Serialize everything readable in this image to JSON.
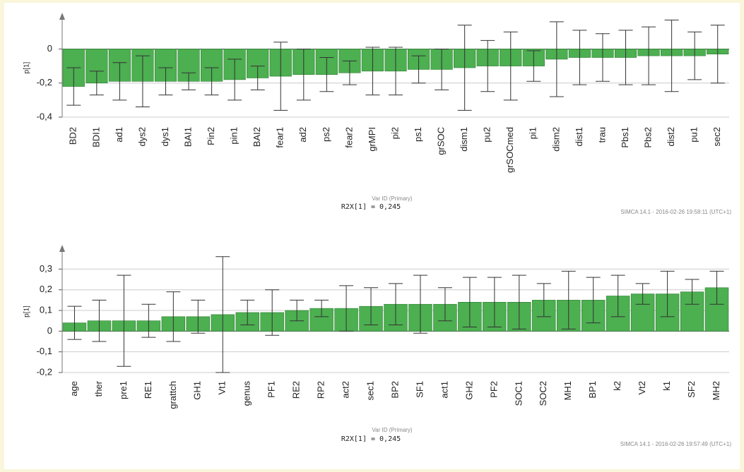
{
  "chart_data": [
    {
      "type": "bar",
      "ylabel": "p[1]",
      "xlabel": "Var ID (Primary)",
      "annotation": "R2X[1] = 0,245",
      "footer": "SIMCA 14.1 - 2016-02-26 19:58:11 (UTC+1)",
      "categories": [
        "BD2",
        "BDI1",
        "ad1",
        "dys2",
        "dys1",
        "BAI1",
        "Pin2",
        "pin1",
        "BAI2",
        "fear1",
        "ad2",
        "ps2",
        "fear2",
        "grMPI",
        "pi2",
        "ps1",
        "grSOC",
        "dism1",
        "pu2",
        "grSOCmed",
        "pi1",
        "dism2",
        "dist1",
        "trau",
        "Pbs1",
        "Pbs2",
        "dist2",
        "pu1",
        "sec2"
      ],
      "values": [
        -0.22,
        -0.2,
        -0.19,
        -0.19,
        -0.19,
        -0.19,
        -0.19,
        -0.18,
        -0.17,
        -0.16,
        -0.15,
        -0.15,
        -0.14,
        -0.13,
        -0.13,
        -0.12,
        -0.12,
        -0.11,
        -0.1,
        -0.1,
        -0.1,
        -0.06,
        -0.05,
        -0.05,
        -0.05,
        -0.04,
        -0.04,
        -0.04,
        -0.03
      ],
      "errors": [
        0.11,
        0.07,
        0.11,
        0.15,
        0.08,
        0.05,
        0.08,
        0.12,
        0.07,
        0.2,
        0.15,
        0.1,
        0.07,
        0.14,
        0.14,
        0.08,
        0.12,
        0.25,
        0.15,
        0.2,
        0.09,
        0.22,
        0.16,
        0.14,
        0.16,
        0.17,
        0.21,
        0.14,
        0.17
      ],
      "color": "#4caf50",
      "ylim": [
        -0.4,
        0.18
      ],
      "yticks": [
        0,
        {
          "value": -0.2,
          "label": "-0,2"
        },
        {
          "value": -0.4,
          "label": "-0,4"
        }
      ],
      "grid": true
    },
    {
      "type": "bar",
      "ylabel": "p[1]",
      "xlabel": "Var ID (Primary)",
      "annotation": "R2X[1] = 0,245",
      "footer": "SIMCA 14.1 - 2016-02-26 19:57:49 (UTC+1)",
      "categories": [
        "age",
        "ther",
        "pre1",
        "RE1",
        "grattch",
        "GH1",
        "Vt1",
        "genus",
        "PF1",
        "RE2",
        "RP2",
        "act2",
        "sec1",
        "BP2",
        "SF1",
        "act1",
        "GH2",
        "PF2",
        "SOC1",
        "SOC2",
        "MH1",
        "BP1",
        "k2",
        "Vt2",
        "k1",
        "SF2",
        "MH2"
      ],
      "values": [
        0.04,
        0.05,
        0.05,
        0.05,
        0.07,
        0.07,
        0.08,
        0.09,
        0.09,
        0.1,
        0.11,
        0.11,
        0.12,
        0.13,
        0.13,
        0.13,
        0.14,
        0.14,
        0.14,
        0.15,
        0.15,
        0.15,
        0.17,
        0.18,
        0.18,
        0.19,
        0.21
      ],
      "errors": [
        0.08,
        0.1,
        0.22,
        0.08,
        0.12,
        0.08,
        0.28,
        0.06,
        0.11,
        0.05,
        0.04,
        0.11,
        0.09,
        0.1,
        0.14,
        0.08,
        0.12,
        0.12,
        0.13,
        0.08,
        0.14,
        0.11,
        0.1,
        0.05,
        0.11,
        0.06,
        0.08
      ],
      "color": "#4caf50",
      "ylim": [
        -0.2,
        0.39
      ],
      "yticks": [
        {
          "value": 0.3,
          "label": "0,3"
        },
        {
          "value": 0.2,
          "label": "0,2"
        },
        {
          "value": 0.1,
          "label": "0,1"
        },
        0,
        {
          "value": -0.1,
          "label": "-0,1"
        },
        {
          "value": -0.2,
          "label": "-0,2"
        }
      ],
      "grid": true
    }
  ]
}
